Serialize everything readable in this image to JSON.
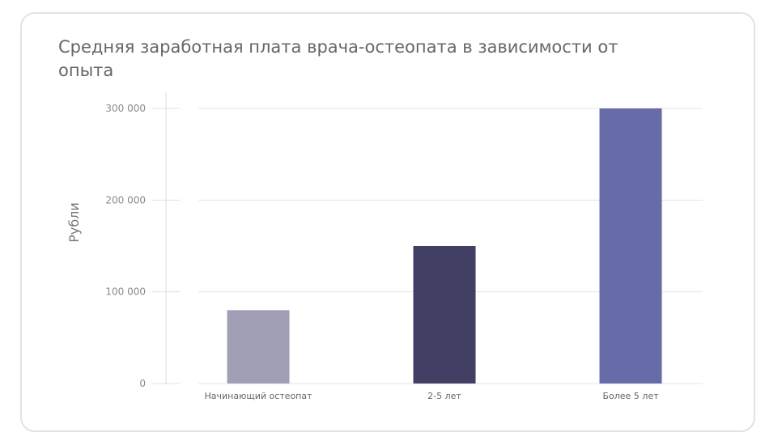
{
  "chart_data": {
    "type": "bar",
    "title": "Средняя заработная плата врача-остеопата в зависимости от опыта",
    "xlabel": "",
    "ylabel": "Рубли",
    "ylim": [
      0,
      300000
    ],
    "yticks": [
      0,
      100000,
      200000,
      300000
    ],
    "ytick_labels": [
      "0",
      "100 000",
      "200 000",
      "300 000"
    ],
    "categories": [
      "Начинающий остеопат",
      "2-5 лет",
      "Более 5 лет"
    ],
    "values": [
      80000,
      150000,
      300000
    ],
    "colors": [
      "#a19fb5",
      "#413f63",
      "#676ba7"
    ],
    "grid": true
  }
}
